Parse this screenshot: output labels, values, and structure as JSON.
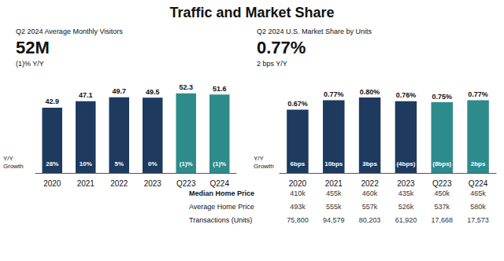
{
  "title": "Traffic and Market Share",
  "chart_data": [
    {
      "type": "bar",
      "subtitle": "Q2 2024 Average Monthly Visitors",
      "headline": "52M",
      "headline_note": "(1)% Y/Y",
      "categories": [
        "2020",
        "2021",
        "2022",
        "2023",
        "Q223",
        "Q224"
      ],
      "values": [
        42.9,
        47.1,
        49.7,
        49.5,
        52.3,
        51.6
      ],
      "colors": [
        "#1e3a5f",
        "#1e3a5f",
        "#1e3a5f",
        "#1e3a5f",
        "#2e8b8b",
        "#2e8b8b"
      ],
      "data_labels": true,
      "yoy_title": "Y/Y\nGrowth",
      "yoy_labels": [
        "28%",
        "10%",
        "5%",
        "0%",
        "(1)%",
        "(1)%"
      ],
      "ylim": [
        0,
        62
      ],
      "grid": false,
      "tick_labels": "x"
    },
    {
      "type": "bar",
      "subtitle": "Q2 2024 U.S. Market Share by Units",
      "headline": "0.77%",
      "headline_note": "2 bps Y/Y",
      "categories": [
        "2020",
        "2021",
        "2022",
        "2023",
        "Q223",
        "Q224"
      ],
      "values": [
        0.67,
        0.77,
        0.8,
        0.76,
        0.75,
        0.77
      ],
      "value_labels": [
        "0.67%",
        "0.77%",
        "0.80%",
        "0.76%",
        "0.75%",
        "0.77%"
      ],
      "colors": [
        "#1e3a5f",
        "#1e3a5f",
        "#1e3a5f",
        "#1e3a5f",
        "#2e8b8b",
        "#2e8b8b"
      ],
      "data_labels": true,
      "yoy_title": "Y/Y\nGrowth",
      "yoy_labels": [
        "6bps",
        "10bps",
        "3bps",
        "(4bps)",
        "(8bps)",
        "2bps"
      ],
      "ylim": [
        0,
        1
      ],
      "grid": false,
      "tick_labels": "x",
      "table": {
        "rows": [
          {
            "label": "Median Home Price",
            "values": [
              "410k",
              "455k",
              "460k",
              "435k",
              "450k",
              "465k"
            ]
          },
          {
            "label": "Average Home Price",
            "values": [
              "493k",
              "555k",
              "557k",
              "526k",
              "537k",
              "580k"
            ]
          },
          {
            "label": "Transactions (Units)",
            "values": [
              "75,800",
              "94,579",
              "80,203",
              "61,920",
              "17,668",
              "17,573"
            ]
          }
        ]
      }
    }
  ]
}
